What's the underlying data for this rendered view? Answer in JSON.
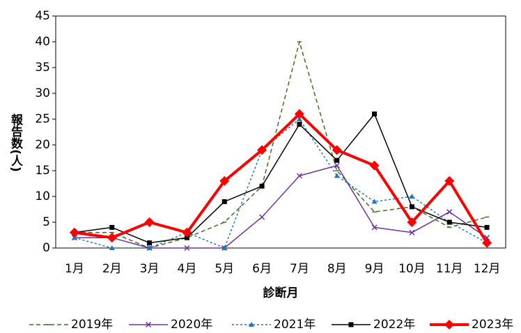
{
  "chart_data": {
    "type": "line",
    "y_label": "報告数(人)",
    "x_label": "診断月",
    "categories": [
      "1月",
      "2月",
      "3月",
      "4月",
      "5月",
      "6月",
      "7月",
      "8月",
      "9月",
      "10月",
      "11月",
      "12月"
    ],
    "ylim": [
      0,
      45
    ],
    "yticks": [
      0,
      5,
      10,
      15,
      20,
      25,
      30,
      35,
      40,
      45
    ],
    "legend": "bottom",
    "series": [
      {
        "name": "2019年",
        "color": "#3f6f1a",
        "dash": "dashed",
        "marker": "dash",
        "width": 1.5,
        "values": [
          3,
          3,
          0,
          2,
          5,
          12,
          40,
          15,
          7,
          8,
          4,
          6
        ]
      },
      {
        "name": "2020年",
        "color": "#7030a0",
        "dash": "solid",
        "marker": "x",
        "width": 1.5,
        "values": [
          2,
          2,
          0,
          0,
          0,
          6,
          14,
          16,
          4,
          3,
          7,
          2
        ]
      },
      {
        "name": "2021年",
        "color": "#1f77b4",
        "dash": "dotted",
        "marker": "triangle",
        "width": 1.5,
        "values": [
          2,
          0,
          0,
          3,
          0,
          19,
          25,
          14,
          9,
          10,
          5,
          1
        ]
      },
      {
        "name": "2022年",
        "color": "#000000",
        "dash": "solid",
        "marker": "square",
        "width": 1.5,
        "values": [
          3,
          4,
          1,
          2,
          9,
          12,
          24,
          17,
          26,
          8,
          5,
          4
        ]
      },
      {
        "name": "2023年",
        "color": "#ff0000",
        "dash": "solid",
        "marker": "diamond",
        "width": 4,
        "values": [
          3,
          2,
          5,
          3,
          13,
          19,
          26,
          19,
          16,
          5,
          13,
          1
        ]
      }
    ]
  }
}
